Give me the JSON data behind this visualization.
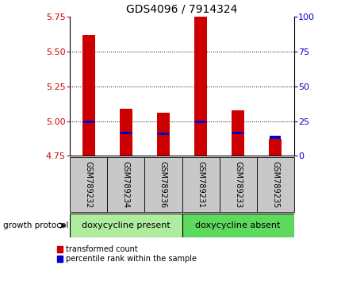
{
  "title": "GDS4096 / 7914324",
  "samples": [
    "GSM789232",
    "GSM789234",
    "GSM789236",
    "GSM789231",
    "GSM789233",
    "GSM789235"
  ],
  "red_values": [
    5.62,
    5.09,
    5.06,
    5.75,
    5.08,
    4.875
  ],
  "blue_values": [
    4.995,
    4.915,
    4.91,
    4.995,
    4.915,
    4.885
  ],
  "baseline": 4.75,
  "ylim": [
    4.75,
    5.75
  ],
  "yticks_left": [
    4.75,
    5.0,
    5.25,
    5.5,
    5.75
  ],
  "yticks_right": [
    0,
    25,
    50,
    75,
    100
  ],
  "group1_label": "doxycycline present",
  "group2_label": "doxycycline absent",
  "group1_indices": [
    0,
    1,
    2
  ],
  "group2_indices": [
    3,
    4,
    5
  ],
  "protocol_label": "growth protocol",
  "legend_red": "transformed count",
  "legend_blue": "percentile rank within the sample",
  "bar_width": 0.35,
  "red_color": "#cc0000",
  "blue_color": "#0000cc",
  "group_bg1": "#aeed9e",
  "group_bg2": "#5dd95d",
  "tick_color_left": "#cc0000",
  "tick_color_right": "#0000cc",
  "grid_color": "#000000",
  "sample_box_color": "#c8c8c8",
  "title_fontsize": 10,
  "axis_fontsize": 8,
  "sample_fontsize": 7,
  "group_fontsize": 8,
  "legend_fontsize": 7
}
